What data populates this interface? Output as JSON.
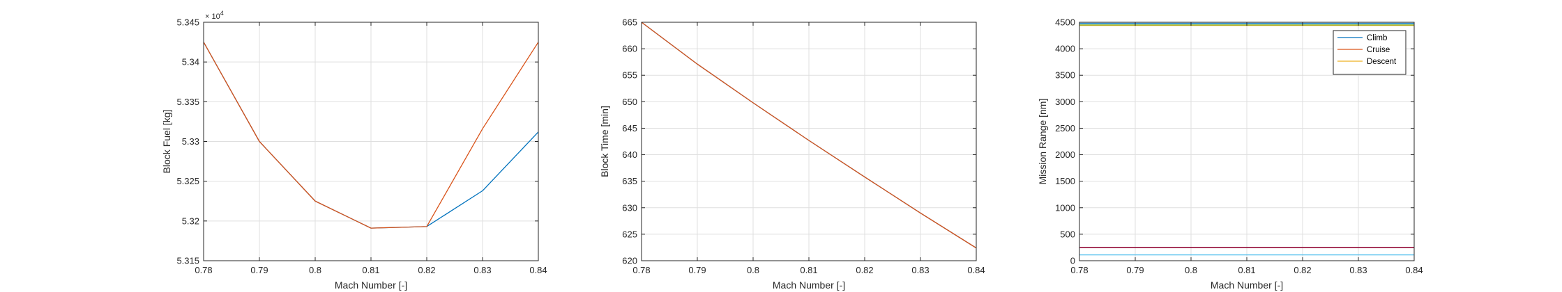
{
  "chart_data": [
    {
      "type": "line",
      "xlabel": "Mach Number [-]",
      "ylabel": "Block Fuel [kg]",
      "y_exponent_base": "× 10",
      "y_exponent_power": "4",
      "xlim": [
        0.78,
        0.84
      ],
      "ylim": [
        53150,
        53450
      ],
      "xticks": [
        0.78,
        0.79,
        0.8,
        0.81,
        0.82,
        0.83,
        0.84
      ],
      "xtick_labels": [
        "0.78",
        "0.79",
        "0.8",
        "0.81",
        "0.82",
        "0.83",
        "0.84"
      ],
      "yticks": [
        53150,
        53200,
        53250,
        53300,
        53350,
        53400,
        53450
      ],
      "ytick_labels": [
        "5.315",
        "5.32",
        "5.325",
        "5.33",
        "5.335",
        "5.34",
        "5.345"
      ],
      "grid": true,
      "x": [
        0.78,
        0.79,
        0.8,
        0.81,
        0.82,
        0.83,
        0.84
      ],
      "series": [
        {
          "color": "#0072BD",
          "values": [
            53425,
            53300,
            53225,
            53191,
            53193,
            53238,
            53312
          ]
        },
        {
          "color": "#D95319",
          "values": [
            53425,
            53300,
            53225,
            53191,
            53193,
            53316,
            53425
          ]
        }
      ]
    },
    {
      "type": "line",
      "xlabel": "Mach Number [-]",
      "ylabel": "Block Time [min]",
      "xlim": [
        0.78,
        0.84
      ],
      "ylim": [
        620,
        665
      ],
      "xticks": [
        0.78,
        0.79,
        0.8,
        0.81,
        0.82,
        0.83,
        0.84
      ],
      "xtick_labels": [
        "0.78",
        "0.79",
        "0.8",
        "0.81",
        "0.82",
        "0.83",
        "0.84"
      ],
      "yticks": [
        620,
        625,
        630,
        635,
        640,
        645,
        650,
        655,
        660,
        665
      ],
      "ytick_labels": [
        "620",
        "625",
        "630",
        "635",
        "640",
        "645",
        "650",
        "655",
        "660",
        "665"
      ],
      "grid": true,
      "x": [
        0.78,
        0.79,
        0.8,
        0.81,
        0.82,
        0.83,
        0.84
      ],
      "series": [
        {
          "color": "#0072BD",
          "values": [
            665,
            657.1,
            649.8,
            642.7,
            635.8,
            629.0,
            622.4
          ]
        },
        {
          "color": "#D95319",
          "values": [
            665,
            657.1,
            649.8,
            642.7,
            635.8,
            629.0,
            622.4
          ]
        }
      ]
    },
    {
      "type": "line",
      "xlabel": "Mach Number [-]",
      "ylabel": "Mission Range [nm]",
      "xlim": [
        0.78,
        0.84
      ],
      "ylim": [
        0,
        4500
      ],
      "xticks": [
        0.78,
        0.79,
        0.8,
        0.81,
        0.82,
        0.83,
        0.84
      ],
      "xtick_labels": [
        "0.78",
        "0.79",
        "0.8",
        "0.81",
        "0.82",
        "0.83",
        "0.84"
      ],
      "yticks": [
        0,
        500,
        1000,
        1500,
        2000,
        2500,
        3000,
        3500,
        4000,
        4500
      ],
      "ytick_labels": [
        "0",
        "500",
        "1000",
        "1500",
        "2000",
        "2500",
        "3000",
        "3500",
        "4000",
        "4500"
      ],
      "grid": true,
      "legend_position": "top-right",
      "x": [
        0.78,
        0.79,
        0.8,
        0.81,
        0.82,
        0.83,
        0.84
      ],
      "series": [
        {
          "name": "Climb",
          "color": "#0072BD",
          "values": [
            4480,
            4480,
            4480,
            4480,
            4480,
            4480,
            4480
          ]
        },
        {
          "name": "Cruise",
          "color": "#D95319",
          "values": [
            4445,
            4445,
            4445,
            4445,
            4445,
            4445,
            4445
          ]
        },
        {
          "name": "Descent",
          "color": "#EDB120",
          "values": [
            4440,
            4440,
            4440,
            4440,
            4440,
            4440,
            4440
          ]
        },
        {
          "color": "#7E2F8E",
          "values": [
            250,
            250,
            250,
            250,
            250,
            250,
            250
          ]
        },
        {
          "color": "#77AC30",
          "values": [
            4450,
            4450,
            4450,
            4450,
            4450,
            4450,
            4450
          ]
        },
        {
          "color": "#4DBEEE",
          "values": [
            110,
            110,
            110,
            110,
            110,
            110,
            110
          ]
        },
        {
          "color": "#A2142F",
          "values": [
            245,
            245,
            245,
            245,
            245,
            245,
            245
          ]
        }
      ]
    }
  ]
}
